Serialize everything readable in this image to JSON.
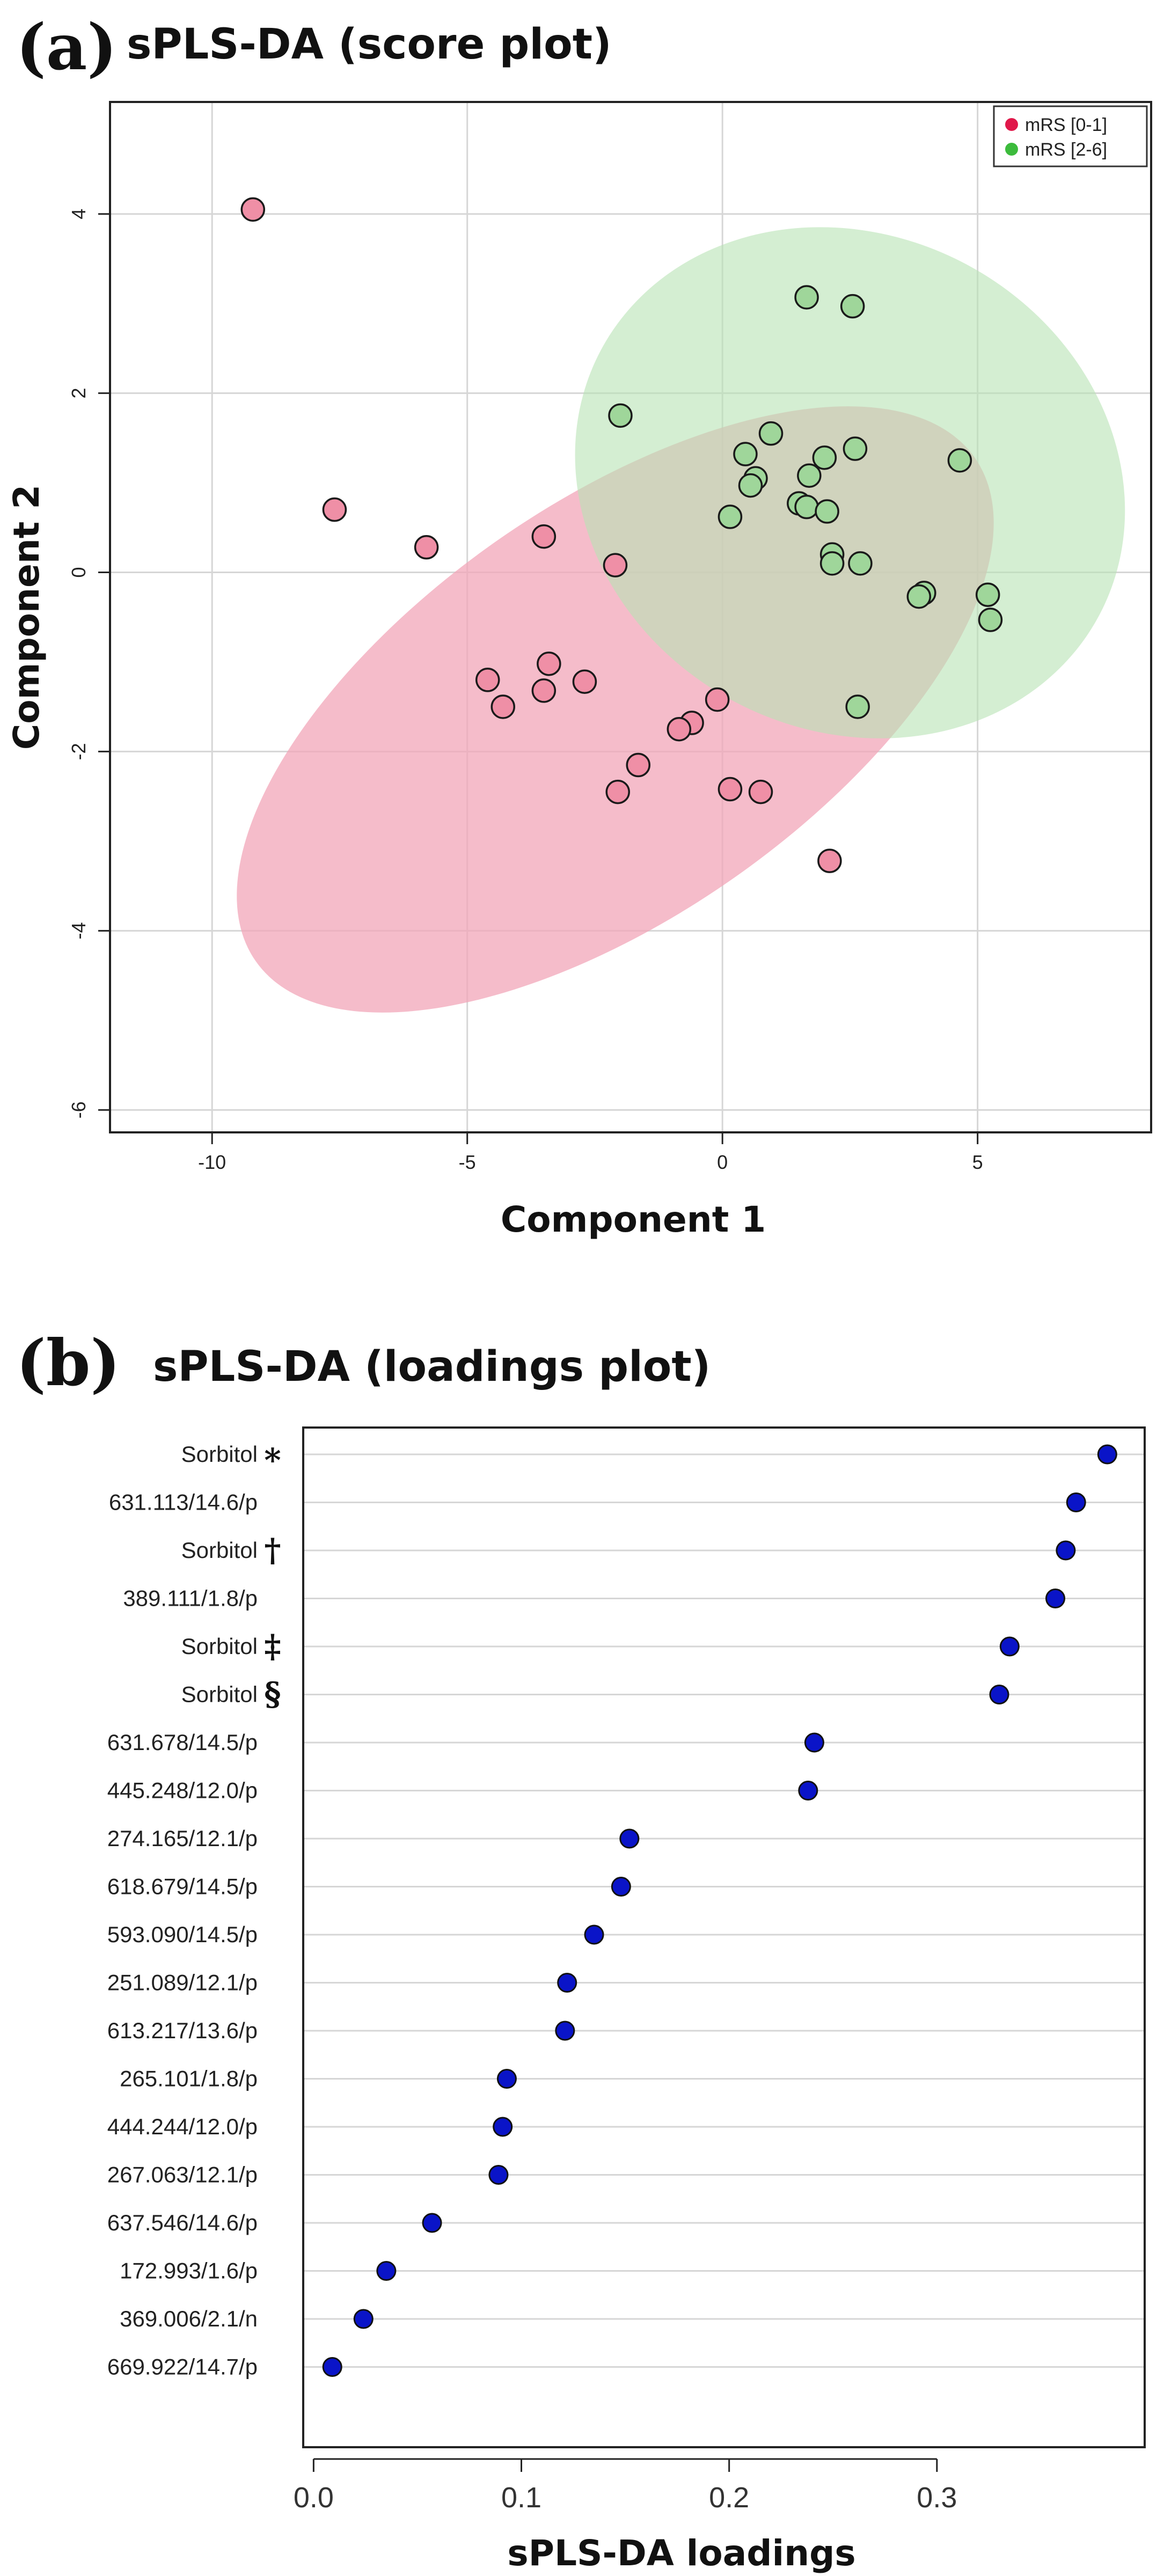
{
  "panels": [
    {
      "letter": "(a)",
      "title": "sPLS-DA (score plot)"
    },
    {
      "letter": "(b)",
      "title": "sPLS-DA (loadings plot)"
    }
  ],
  "colors": {
    "group1_fill": "#ef8fa6",
    "group1_ellipse": "#f2a6b8",
    "group2_fill": "#9fd69a",
    "group2_ellipse": "#b8e2b4",
    "legend_dot1": "#e0184a",
    "legend_dot2": "#3cbb3c",
    "loading_dot": "#0a14c8",
    "grid": "#d6d6d6"
  },
  "chart_data": [
    {
      "type": "scatter",
      "title": "sPLS-DA (score plot)",
      "xlabel": "Component 1",
      "ylabel": "Component 2",
      "xlim": [
        -12,
        8.4
      ],
      "ylim": [
        -6.25,
        5.25
      ],
      "xticks": [
        -10,
        -5,
        0,
        5
      ],
      "yticks": [
        4,
        2,
        0,
        -2,
        -4,
        -6
      ],
      "legend_position": "top-right",
      "series": [
        {
          "name": "mRS [0-1]",
          "points": [
            [
              -9.2,
              4.05
            ],
            [
              -7.6,
              0.7
            ],
            [
              -5.8,
              0.28
            ],
            [
              -3.5,
              0.4
            ],
            [
              -2.1,
              0.08
            ],
            [
              -4.6,
              -1.2
            ],
            [
              -4.3,
              -1.5
            ],
            [
              -3.4,
              -1.02
            ],
            [
              -3.5,
              -1.32
            ],
            [
              -2.7,
              -1.22
            ],
            [
              -0.1,
              -1.42
            ],
            [
              -0.6,
              -1.68
            ],
            [
              -0.85,
              -1.75
            ],
            [
              -1.65,
              -2.15
            ],
            [
              -2.05,
              -2.45
            ],
            [
              0.15,
              -2.42
            ],
            [
              0.75,
              -2.45
            ],
            [
              2.1,
              -3.22
            ]
          ],
          "ellipse": {
            "center": [
              -2.1,
              -1.53
            ],
            "semi_axes": [
              8.6,
              2.3
            ],
            "angle_deg": -35
          }
        },
        {
          "name": "mRS [2-6]",
          "points": [
            [
              1.65,
              3.07
            ],
            [
              2.55,
              2.97
            ],
            [
              -2.0,
              1.75
            ],
            [
              0.95,
              1.55
            ],
            [
              0.45,
              1.32
            ],
            [
              2.0,
              1.28
            ],
            [
              2.6,
              1.38
            ],
            [
              4.65,
              1.25
            ],
            [
              0.65,
              1.05
            ],
            [
              0.55,
              0.97
            ],
            [
              1.7,
              1.08
            ],
            [
              1.5,
              0.77
            ],
            [
              1.65,
              0.73
            ],
            [
              2.05,
              0.68
            ],
            [
              0.15,
              0.62
            ],
            [
              2.15,
              0.2
            ],
            [
              2.15,
              0.1
            ],
            [
              2.7,
              0.1
            ],
            [
              3.95,
              -0.23
            ],
            [
              3.85,
              -0.27
            ],
            [
              5.2,
              -0.25
            ],
            [
              5.25,
              -0.53
            ],
            [
              2.65,
              -1.5
            ]
          ],
          "ellipse": {
            "center": [
              2.5,
              1.0
            ],
            "semi_axes": [
              4.85,
              3.15
            ],
            "angle_deg": -62
          }
        }
      ]
    },
    {
      "type": "dot",
      "title": "sPLS-DA (loadings plot)",
      "xlabel": "sPLS-DA loadings",
      "xlim": [
        -0.005,
        0.4
      ],
      "xticks": [
        0.0,
        0.1,
        0.2,
        0.3
      ],
      "xtick_labels": [
        "0.0",
        "0.1",
        "0.2",
        "0.3"
      ],
      "categories": [
        {
          "label": "Sorbitol",
          "symbol": "∗"
        },
        {
          "label": "631.113/14.6/p",
          "symbol": ""
        },
        {
          "label": "Sorbitol",
          "symbol": "†"
        },
        {
          "label": "389.111/1.8/p",
          "symbol": ""
        },
        {
          "label": "Sorbitol",
          "symbol": "‡"
        },
        {
          "label": "Sorbitol",
          "symbol": "§"
        },
        {
          "label": "631.678/14.5/p",
          "symbol": ""
        },
        {
          "label": "445.248/12.0/p",
          "symbol": ""
        },
        {
          "label": "274.165/12.1/p",
          "symbol": ""
        },
        {
          "label": "618.679/14.5/p",
          "symbol": ""
        },
        {
          "label": "593.090/14.5/p",
          "symbol": ""
        },
        {
          "label": "251.089/12.1/p",
          "symbol": ""
        },
        {
          "label": "613.217/13.6/p",
          "symbol": ""
        },
        {
          "label": "265.101/1.8/p",
          "symbol": ""
        },
        {
          "label": "444.244/12.0/p",
          "symbol": ""
        },
        {
          "label": "267.063/12.1/p",
          "symbol": ""
        },
        {
          "label": "637.546/14.6/p",
          "symbol": ""
        },
        {
          "label": "172.993/1.6/p",
          "symbol": ""
        },
        {
          "label": "369.006/2.1/n",
          "symbol": ""
        },
        {
          "label": "669.922/14.7/p",
          "symbol": ""
        }
      ],
      "values": [
        0.382,
        0.367,
        0.362,
        0.357,
        0.335,
        0.33,
        0.241,
        0.238,
        0.152,
        0.148,
        0.135,
        0.122,
        0.121,
        0.093,
        0.091,
        0.089,
        0.057,
        0.035,
        0.024,
        0.009
      ]
    }
  ]
}
